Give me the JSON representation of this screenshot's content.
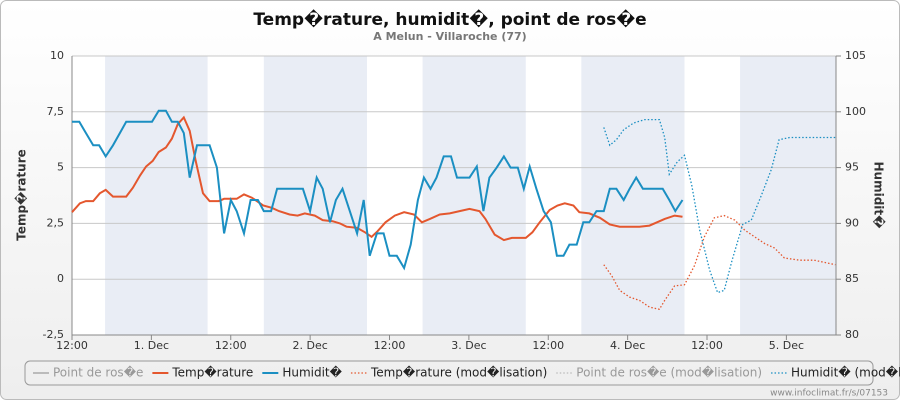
{
  "chart_data": {
    "type": "line",
    "title": "Temp�rature, humidit�, point de ros�e",
    "subtitle": "A Melun - Villaroche (77)",
    "ylabel": "Temp�rature",
    "y2label": "Humidit�",
    "credit": "www.infoclimat.fr/s/07153",
    "xlim": [
      0,
      115.5
    ],
    "xticks": [
      {
        "value": 0,
        "label": "12:00"
      },
      {
        "value": 12,
        "label": "1. Dec"
      },
      {
        "value": 24,
        "label": "12:00"
      },
      {
        "value": 36,
        "label": "2. Dec"
      },
      {
        "value": 48,
        "label": "12:00"
      },
      {
        "value": 60,
        "label": "3. Dec"
      },
      {
        "value": 72,
        "label": "12:00"
      },
      {
        "value": 84,
        "label": "4. Dec"
      },
      {
        "value": 96,
        "label": "12:00"
      },
      {
        "value": 108,
        "label": "5. Dec"
      }
    ],
    "ylim": [
      -2.5,
      10
    ],
    "yticks": [
      {
        "value": -2.5,
        "label": "-2,5"
      },
      0,
      {
        "value": 2.5,
        "label": "2,5"
      },
      5,
      {
        "value": 7.5,
        "label": "7,5"
      },
      10
    ],
    "y2lim": [
      80,
      105
    ],
    "y2ticks": [
      80,
      85,
      90,
      95,
      100,
      105
    ],
    "grid": true,
    "band_color": "#e9edf5",
    "bands": [
      [
        5,
        20.5
      ],
      [
        29,
        44.6
      ],
      [
        53,
        68.6
      ],
      [
        77,
        92.6
      ],
      [
        101,
        115.5
      ]
    ],
    "series": [
      {
        "name": "Point de ros�e",
        "color": "#666666",
        "dash": "solid",
        "visible": false,
        "x": [],
        "values": []
      },
      {
        "name": "Temp�rature",
        "color": "#e4572e",
        "dash": "solid",
        "visible": true,
        "x": [
          0,
          1.2,
          2.1,
          3.2,
          4.2,
          5.1,
          6.2,
          8.2,
          9.2,
          10.3,
          11.2,
          12.2,
          13.1,
          14.2,
          15.1,
          16,
          16.9,
          17.8,
          18.7,
          19.8,
          20.8,
          22.2,
          23,
          24.9,
          26,
          27.2,
          28.9,
          30.2,
          31.3,
          32.9,
          34.1,
          35.2,
          36.7,
          37.9,
          39.4,
          40.5,
          41.5,
          43.1,
          44.3,
          45.3,
          46.2,
          47.4,
          48.8,
          50.2,
          51.7,
          52.9,
          54.1,
          55.6,
          57.1,
          58.6,
          60.1,
          61.6,
          62.5,
          63.9,
          65.3,
          66.5,
          68.6,
          69.6,
          70.7,
          72.2,
          73.4,
          74.5,
          75.8,
          76.7,
          78.2,
          79.8,
          81.3,
          82.8,
          85.8,
          87.3,
          89.6,
          91.1,
          92.3
        ],
        "values": [
          3.0,
          3.4,
          3.5,
          3.5,
          3.85,
          4.0,
          3.7,
          3.7,
          4.1,
          4.65,
          5.05,
          5.3,
          5.7,
          5.9,
          6.3,
          6.95,
          7.25,
          6.65,
          5.3,
          3.85,
          3.5,
          3.5,
          3.6,
          3.6,
          3.8,
          3.65,
          3.3,
          3.2,
          3.05,
          2.9,
          2.85,
          2.95,
          2.85,
          2.65,
          2.6,
          2.5,
          2.35,
          2.3,
          2.1,
          1.9,
          2.15,
          2.55,
          2.85,
          3.0,
          2.9,
          2.55,
          2.7,
          2.9,
          2.95,
          3.05,
          3.15,
          3.05,
          2.7,
          2.0,
          1.75,
          1.85,
          1.85,
          2.1,
          2.55,
          3.1,
          3.3,
          3.4,
          3.3,
          3.0,
          2.95,
          2.75,
          2.45,
          2.35,
          2.35,
          2.4,
          2.7,
          2.85,
          2.8
        ]
      },
      {
        "name": "Humidit�",
        "color": "#1b8fc2",
        "dash": "solid",
        "visible": true,
        "axis": "y2",
        "x": [
          0,
          1.1,
          2.1,
          3.2,
          4.1,
          5.1,
          6.2,
          8.2,
          12.1,
          13.1,
          14.2,
          15.1,
          16,
          16.9,
          17.8,
          18.9,
          20.8,
          21.9,
          23,
          24,
          24.9,
          26,
          27,
          28.1,
          29,
          30.1,
          31,
          34.9,
          36,
          37,
          37.9,
          39,
          39.9,
          40.9,
          42,
          43.1,
          44.1,
          45,
          46.1,
          47.1,
          48,
          49.1,
          50.2,
          51.2,
          52.3,
          53.2,
          54.2,
          55.1,
          56.2,
          57.3,
          58.2,
          60.1,
          61.2,
          62.2,
          63.1,
          64.2,
          65.3,
          66.3,
          67.4,
          68.3,
          69.2,
          70.2,
          71.3,
          72.4,
          73.3,
          74.3,
          75.2,
          76.3,
          77.3,
          78.2,
          79.3,
          80.4,
          81.3,
          82.3,
          83.4,
          84.3,
          85.3,
          86.3,
          89.3,
          90.3,
          91.2,
          92.3
        ],
        "values": [
          99.1,
          99.1,
          98.1,
          97.0,
          97.0,
          96.0,
          97.0,
          99.1,
          99.1,
          100.1,
          100.1,
          99.1,
          99.1,
          98.1,
          94.1,
          97.0,
          97.0,
          95.0,
          89.1,
          92.1,
          91.1,
          89.1,
          92.1,
          92.1,
          91.1,
          91.1,
          93.1,
          93.1,
          91.1,
          94.1,
          93.1,
          90.1,
          92.1,
          93.1,
          91.1,
          89.1,
          92.1,
          87.1,
          89.1,
          89.1,
          87.1,
          87.1,
          86.0,
          88.1,
          92.1,
          94.1,
          93.1,
          94.1,
          96.0,
          96.0,
          94.1,
          94.1,
          95.1,
          91.1,
          94.1,
          95.0,
          96.0,
          95.0,
          95.0,
          93.1,
          95.1,
          93.1,
          91.1,
          90.1,
          87.1,
          87.1,
          88.1,
          88.1,
          90.1,
          90.1,
          91.1,
          91.1,
          93.1,
          93.1,
          92.1,
          93.1,
          94.1,
          93.1,
          93.1,
          92.1,
          91.1,
          92.1
        ]
      },
      {
        "name": "Temp�rature (mod�lisation)",
        "color": "#e4572e",
        "dash": "dotted",
        "visible": true,
        "x": [
          80.4,
          81.6,
          82.8,
          84.3,
          85.8,
          87.3,
          88.8,
          89.6,
          91.1,
          92.6,
          94.1,
          95.6,
          97.1,
          98.6,
          100.2,
          101.7,
          103.2,
          104.7,
          106.2,
          107.7,
          110,
          112.2,
          115.4
        ],
        "values": [
          0.65,
          0.15,
          -0.5,
          -0.8,
          -0.95,
          -1.25,
          -1.35,
          -0.95,
          -0.3,
          -0.25,
          0.6,
          1.9,
          2.75,
          2.85,
          2.65,
          2.2,
          1.9,
          1.6,
          1.4,
          0.95,
          0.85,
          0.85,
          0.65
        ]
      },
      {
        "name": "Point de ros�e (mod�lisation)",
        "color": "#666666",
        "dash": "dotted",
        "visible": false,
        "x": [],
        "values": []
      },
      {
        "name": "Humidit� (mod�lisation)",
        "color": "#1b8fc2",
        "dash": "dotted",
        "visible": true,
        "axis": "y2",
        "x": [
          80.4,
          81.3,
          82.3,
          83.4,
          84.9,
          86.6,
          88.8,
          89.6,
          90.3,
          91.5,
          92.6,
          93.7,
          94.9,
          96.4,
          97.6,
          98.6,
          99.8,
          101.4,
          102.7,
          104.2,
          105.7,
          106.9,
          108.5,
          111.5,
          115.4
        ],
        "values": [
          98.6,
          97.0,
          97.5,
          98.4,
          99.0,
          99.3,
          99.3,
          97.7,
          94.4,
          95.5,
          96.1,
          93.4,
          89.4,
          85.8,
          83.8,
          84.0,
          86.7,
          89.9,
          90.3,
          92.5,
          94.8,
          97.5,
          97.7,
          97.7,
          97.7
        ]
      }
    ]
  }
}
